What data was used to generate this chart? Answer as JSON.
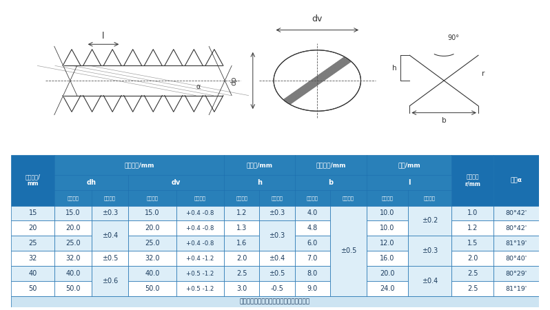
{
  "bg_color": "#ffffff",
  "table_header_bg": "#1a6faf",
  "table_subheader_bg": "#2980b9",
  "table_row_bg": "#ddeef8",
  "table_alt_row_bg": "#ffffff",
  "table_border_color": "#1a6faf",
  "header_text_color": "#ffffff",
  "data_text_color": "#1a3a5c",
  "note_text": "注：螺纹底宽允许偏差属于孔型设计参数。",
  "rows": [
    [
      "15",
      "15.0",
      "±0.3",
      "15.0",
      "+0.4 -0.8",
      "1.2",
      "±0.3",
      "4.0",
      "",
      "10.0",
      "±0.2",
      "1.0",
      "80°42'"
    ],
    [
      "20",
      "20.0",
      "±0.4",
      "20.0",
      "+0.4 -0.8",
      "1.3",
      "±0.3",
      "4.8",
      "",
      "10.0",
      "±0.2",
      "1.2",
      "80°42'"
    ],
    [
      "25",
      "25.0",
      "±0.4",
      "25.0",
      "+0.4 -0.8",
      "1.6",
      "±0.3",
      "6.0",
      "±0.5",
      "12.0",
      "±0.3",
      "1.5",
      "81°19'"
    ],
    [
      "32",
      "32.0",
      "±0.5",
      "32.0",
      "+0.4 -1.2",
      "2.0",
      "±0.4",
      "7.0",
      "",
      "16.0",
      "±0.3",
      "2.0",
      "80°40'"
    ],
    [
      "40",
      "40.0",
      "±0.6",
      "40.0",
      "+0.5 -1.2",
      "2.5",
      "±0.5",
      "8.0",
      "",
      "20.0",
      "±0.4",
      "2.5",
      "80°29'"
    ],
    [
      "50",
      "50.0",
      "±0.6",
      "50.0",
      "+0.5 -1.2",
      "3.0",
      "-0.5",
      "9.0",
      "",
      "24.0",
      "±0.4",
      "2.5",
      "81°19'"
    ]
  ]
}
